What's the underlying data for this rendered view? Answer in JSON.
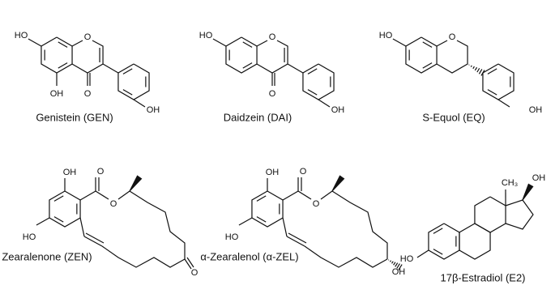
{
  "compounds": [
    {
      "name": "Genistein (GEN)",
      "atoms": [
        "HO",
        "O",
        "O",
        "OH",
        "OH"
      ]
    },
    {
      "name": "Daidzein (DAI)",
      "atoms": [
        "HO",
        "O",
        "O",
        "OH"
      ]
    },
    {
      "name": "S-Equol (EQ)",
      "atoms": [
        "HO",
        "O",
        "OH"
      ]
    },
    {
      "name": "Zearalenone (ZEN)",
      "atoms": [
        "OH",
        "O",
        "O",
        "HO",
        "O"
      ]
    },
    {
      "name": "α-Zearalenol (α-ZEL)",
      "atoms": [
        "OH",
        "O",
        "O",
        "HO",
        "OH"
      ]
    },
    {
      "name": "17β-Estradiol (E2)",
      "atoms": [
        "CH₃",
        "OH",
        "HO"
      ]
    }
  ]
}
